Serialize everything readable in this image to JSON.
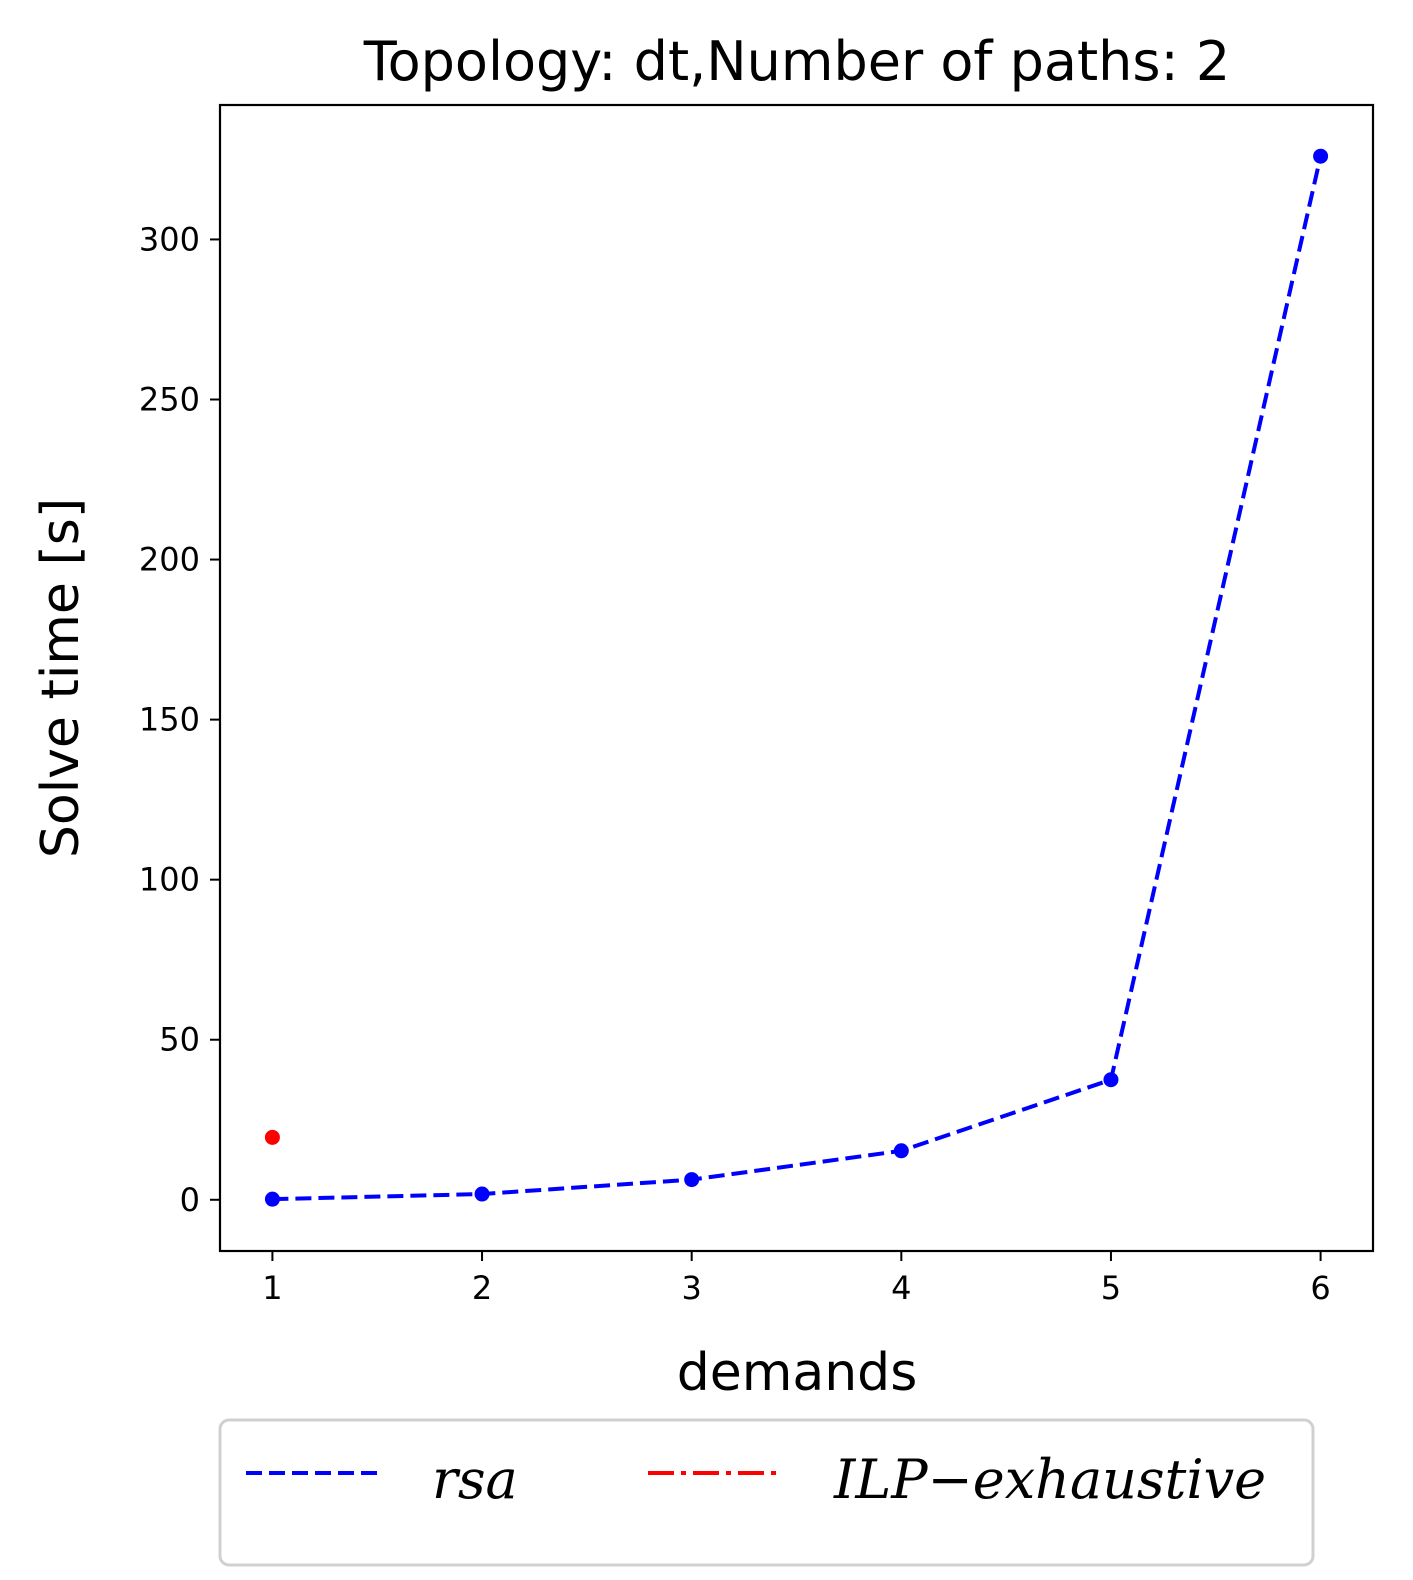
{
  "chart_data": {
    "type": "line",
    "title": "Topology: dt,Number of paths: 2",
    "xlabel": "demands",
    "ylabel": "Solve time [s]",
    "xlim": [
      0.75,
      6.25
    ],
    "ylim": [
      -16,
      342
    ],
    "x_ticks": [
      1,
      2,
      3,
      4,
      5,
      6
    ],
    "y_ticks": [
      0,
      50,
      100,
      150,
      200,
      250,
      300
    ],
    "grid": false,
    "legend_position": "bottom-center",
    "series": [
      {
        "name": "rsa",
        "color": "#0000ff",
        "linestyle": "dashed",
        "marker": "point",
        "x": [
          1,
          2,
          3,
          4,
          5,
          6
        ],
        "y": [
          0.2,
          1.8,
          6.3,
          15.3,
          37.5,
          326
        ]
      },
      {
        "name": "ILP−exhaustive",
        "color": "#ff0000",
        "linestyle": "dashdot",
        "marker": "point",
        "x": [
          1
        ],
        "y": [
          19.5
        ]
      }
    ]
  }
}
